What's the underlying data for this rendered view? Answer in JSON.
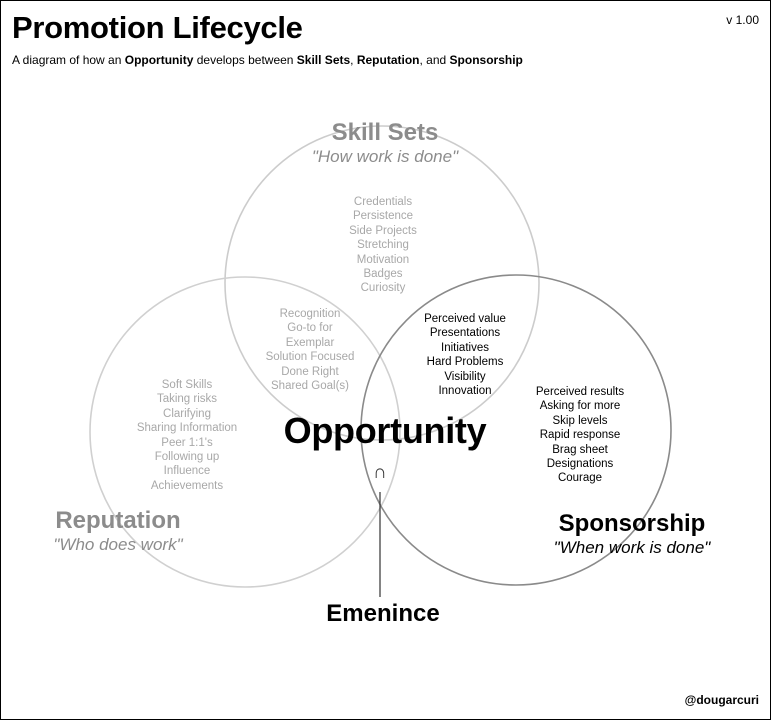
{
  "header": {
    "title": "Promotion Lifecycle",
    "version": "v 1.00",
    "subtitle": {
      "t1": "A diagram of how an ",
      "b1": "Opportunity",
      "t2": " develops between ",
      "b2": "Skill Sets",
      "t3": ", ",
      "b3": "Reputation",
      "t4": ", and ",
      "b4": "Sponsorship"
    }
  },
  "footer": {
    "handle": "@dougarcuri"
  },
  "sets": {
    "skill_sets": {
      "name": "Skill Sets",
      "subtitle": "\"How work is done\""
    },
    "reputation": {
      "name": "Reputation",
      "subtitle": "\"Who does work\""
    },
    "sponsorship": {
      "name": "Sponsorship",
      "subtitle": "\"When work is done\""
    }
  },
  "regions": {
    "skill_only": [
      "Credentials",
      "Persistence",
      "Side Projects",
      "Stretching",
      "Motivation",
      "Badges",
      "Curiosity"
    ],
    "skill_reputation": [
      "Recognition",
      "Go-to for",
      "Exemplar",
      "Solution Focused",
      "Done Right",
      "Shared Goal(s)"
    ],
    "reputation_only": [
      "Soft Skills",
      "Taking risks",
      "Clarifying",
      "Sharing Information",
      "Peer 1:1's",
      "Following up",
      "Influence",
      "Achievements"
    ],
    "skill_sponsorship": [
      "Perceived value",
      "Presentations",
      "Initiatives",
      "Hard Problems",
      "Visibility",
      "Innovation"
    ],
    "sponsorship_only": [
      "Perceived results",
      "Asking for more",
      "Skip levels",
      "Rapid response",
      "Brag sheet",
      "Designations",
      "Courage"
    ]
  },
  "center": {
    "opportunity": "Opportunity",
    "intersection_symbol": "∩",
    "emenince": "Emenince"
  },
  "colors": {
    "skill_circle": "#cccccc",
    "reputation_circle": "#d0d0d0",
    "sponsorship_circle": "#8a8a8a",
    "faded_text": "#a8a8a8",
    "set_title_gray": "#8c8c8c"
  }
}
